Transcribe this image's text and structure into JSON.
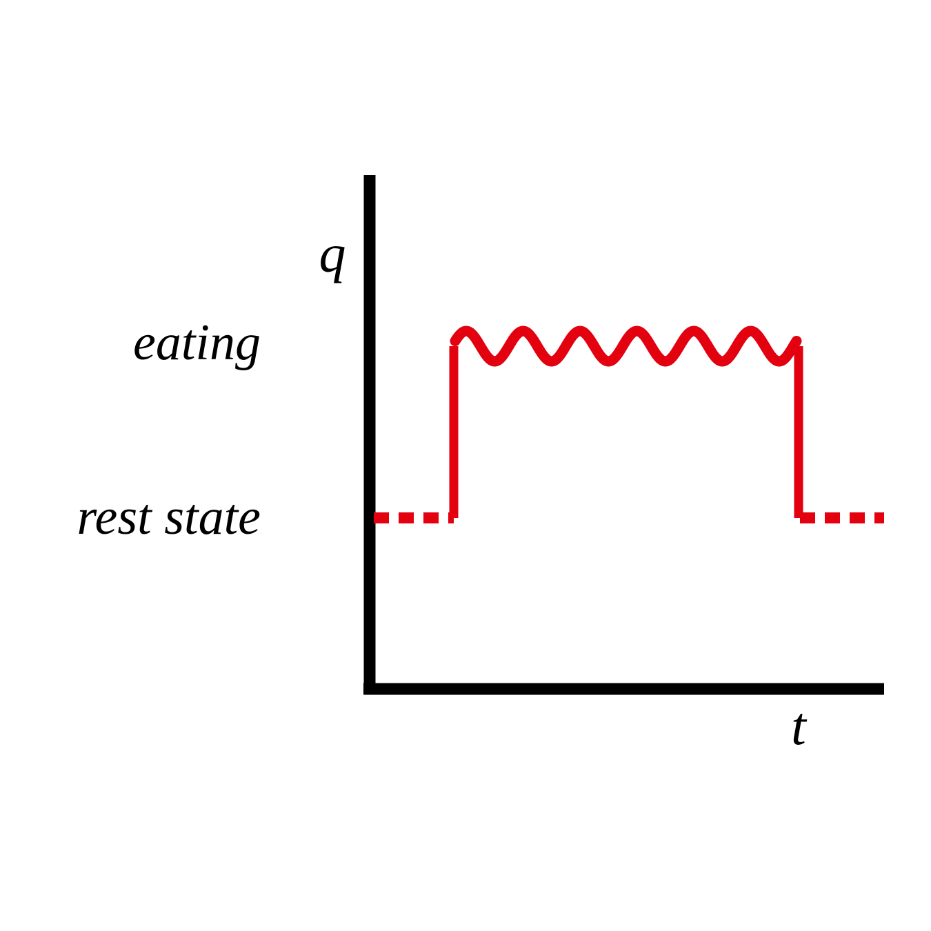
{
  "diagram": {
    "y_axis_label": "q",
    "x_axis_label": "t",
    "levels": {
      "high": "eating",
      "low": "rest state"
    },
    "colors": {
      "axis": "#000000",
      "signal": "#e3000f"
    },
    "signal_pattern": {
      "oscillation_cycles": 6
    }
  }
}
